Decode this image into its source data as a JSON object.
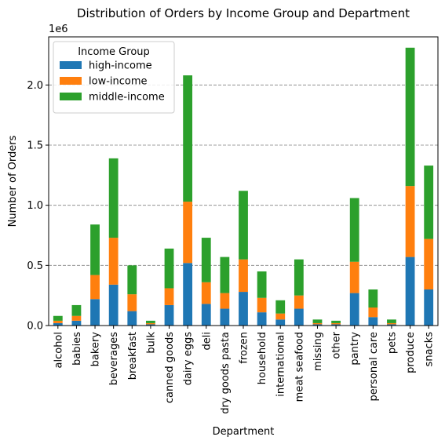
{
  "chart_data": {
    "type": "bar",
    "stacked": true,
    "title": "Distribution of Orders by Income Group and Department",
    "xlabel": "Department",
    "ylabel": "Number of Orders",
    "y_scale_label": "1e6",
    "ylim": [
      0,
      2.4
    ],
    "yticks": [
      "0.0",
      "0.5",
      "1.0",
      "1.5",
      "2.0"
    ],
    "grid": "y-dashed",
    "legend": {
      "title": "Income Group",
      "position": "top-left"
    },
    "categories": [
      "alcohol",
      "babies",
      "bakery",
      "beverages",
      "breakfast",
      "bulk",
      "canned goods",
      "dairy eggs",
      "deli",
      "dry goods pasta",
      "frozen",
      "household",
      "international",
      "meat seafood",
      "missing",
      "other",
      "pantry",
      "personal care",
      "pets",
      "produce",
      "snacks"
    ],
    "series": [
      {
        "name": "high-income",
        "color": "#1f77b4",
        "values": [
          0.02,
          0.04,
          0.22,
          0.34,
          0.12,
          0.01,
          0.17,
          0.52,
          0.18,
          0.14,
          0.28,
          0.11,
          0.05,
          0.14,
          0.01,
          0.01,
          0.27,
          0.07,
          0.01,
          0.57,
          0.3
        ]
      },
      {
        "name": "low-income",
        "color": "#ff7f0e",
        "values": [
          0.02,
          0.04,
          0.2,
          0.39,
          0.14,
          0.01,
          0.14,
          0.51,
          0.18,
          0.13,
          0.27,
          0.12,
          0.05,
          0.11,
          0.01,
          0.01,
          0.26,
          0.08,
          0.01,
          0.59,
          0.42
        ]
      },
      {
        "name": "middle-income",
        "color": "#2ca02c",
        "values": [
          0.04,
          0.09,
          0.42,
          0.66,
          0.24,
          0.02,
          0.33,
          1.05,
          0.37,
          0.3,
          0.57,
          0.22,
          0.11,
          0.3,
          0.03,
          0.02,
          0.53,
          0.15,
          0.03,
          1.15,
          0.61
        ]
      }
    ]
  }
}
